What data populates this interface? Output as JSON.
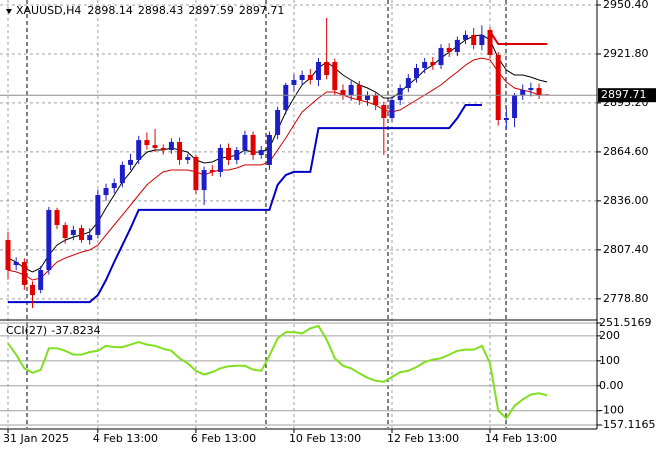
{
  "chart_data": [
    {
      "type": "candlestick",
      "symbol": "XAUUSD,H4",
      "up_color": "#1e1ec8",
      "down_color": "#e00000",
      "ohlc": [
        [
          2813.1,
          2818.0,
          2790.0,
          2795.6
        ],
        [
          2798.5,
          2803.0,
          2795.5,
          2800.3
        ],
        [
          2800.3,
          2802.5,
          2784.0,
          2786.9
        ],
        [
          2786.9,
          2789.0,
          2773.4,
          2781.0
        ],
        [
          2784.0,
          2798.0,
          2782.0,
          2795.6
        ],
        [
          2795.6,
          2832.5,
          2793.0,
          2830.7
        ],
        [
          2830.7,
          2832.0,
          2819.5,
          2821.9
        ],
        [
          2821.9,
          2823.5,
          2811.0,
          2814.3
        ],
        [
          2816.1,
          2821.5,
          2813.0,
          2819.0
        ],
        [
          2820.1,
          2822.0,
          2811.5,
          2813.1
        ],
        [
          2813.1,
          2820.0,
          2810.5,
          2816.1
        ],
        [
          2816.1,
          2842.5,
          2814.0,
          2839.4
        ],
        [
          2839.4,
          2846.0,
          2836.0,
          2843.5
        ],
        [
          2843.5,
          2849.0,
          2840.5,
          2846.4
        ],
        [
          2846.4,
          2859.0,
          2844.0,
          2857.0
        ],
        [
          2857.0,
          2863.5,
          2854.0,
          2859.9
        ],
        [
          2859.9,
          2874.0,
          2857.5,
          2871.5
        ],
        [
          2871.5,
          2876.0,
          2866.0,
          2868.6
        ],
        [
          2868.6,
          2878.0,
          2864.5,
          2866.9
        ],
        [
          2866.9,
          2869.0,
          2863.0,
          2865.7
        ],
        [
          2865.7,
          2872.5,
          2863.5,
          2870.4
        ],
        [
          2870.4,
          2873.0,
          2857.0,
          2859.9
        ],
        [
          2859.9,
          2863.5,
          2857.5,
          2861.6
        ],
        [
          2861.6,
          2863.0,
          2840.0,
          2842.3
        ],
        [
          2842.3,
          2856.0,
          2833.6,
          2854.0
        ],
        [
          2854.0,
          2857.0,
          2850.5,
          2852.9
        ],
        [
          2852.9,
          2869.0,
          2850.0,
          2866.9
        ],
        [
          2866.9,
          2869.5,
          2857.0,
          2859.9
        ],
        [
          2859.9,
          2867.5,
          2857.5,
          2865.7
        ],
        [
          2865.7,
          2877.0,
          2863.0,
          2874.5
        ],
        [
          2874.5,
          2876.5,
          2860.0,
          2862.8
        ],
        [
          2862.8,
          2868.0,
          2860.5,
          2865.7
        ],
        [
          2857.0,
          2876.5,
          2854.0,
          2874.5
        ],
        [
          2874.5,
          2891.0,
          2872.0,
          2889.1
        ],
        [
          2889.1,
          2905.0,
          2886.5,
          2903.7
        ],
        [
          2903.7,
          2910.0,
          2900.0,
          2906.6
        ],
        [
          2906.6,
          2912.0,
          2903.5,
          2909.5
        ],
        [
          2909.5,
          2913.0,
          2904.0,
          2906.6
        ],
        [
          2906.6,
          2919.5,
          2903.0,
          2917.1
        ],
        [
          2917.1,
          2942.8,
          2907.0,
          2909.5
        ],
        [
          2917.1,
          2919.0,
          2897.5,
          2900.7
        ],
        [
          2900.7,
          2904.0,
          2895.0,
          2897.8
        ],
        [
          2897.8,
          2906.0,
          2894.5,
          2903.7
        ],
        [
          2903.7,
          2906.0,
          2892.0,
          2894.9
        ],
        [
          2894.9,
          2900.0,
          2891.5,
          2897.8
        ],
        [
          2897.8,
          2899.5,
          2889.0,
          2892.0
        ],
        [
          2892.0,
          2894.0,
          2862.8,
          2884.4
        ],
        [
          2884.4,
          2897.0,
          2882.0,
          2894.9
        ],
        [
          2894.9,
          2904.0,
          2892.0,
          2901.9
        ],
        [
          2901.9,
          2910.0,
          2899.5,
          2907.7
        ],
        [
          2907.7,
          2916.0,
          2905.0,
          2913.6
        ],
        [
          2913.6,
          2919.5,
          2910.5,
          2917.1
        ],
        [
          2917.1,
          2920.0,
          2912.5,
          2915.3
        ],
        [
          2915.3,
          2927.5,
          2913.0,
          2925.3
        ],
        [
          2925.3,
          2928.0,
          2920.0,
          2922.9
        ],
        [
          2922.9,
          2932.0,
          2920.5,
          2930.0
        ],
        [
          2930.0,
          2935.5,
          2927.5,
          2932.9
        ],
        [
          2932.9,
          2937.0,
          2924.5,
          2927.0
        ],
        [
          2927.0,
          2938.5,
          2924.0,
          2932.9
        ],
        [
          2935.8,
          2937.5,
          2919.0,
          2921.2
        ],
        [
          2921.2,
          2923.0,
          2880.0,
          2883.2
        ],
        [
          2883.2,
          2890.0,
          2877.4,
          2884.4
        ],
        [
          2884.4,
          2899.0,
          2879.0,
          2897.8
        ],
        [
          2897.8,
          2904.0,
          2895.0,
          2900.7
        ],
        [
          2900.7,
          2905.0,
          2897.0,
          2901.9
        ],
        [
          2901.9,
          2904.5,
          2895.5,
          2897.8
        ],
        [
          2898.14,
          2898.43,
          2897.59,
          2897.71
        ]
      ],
      "overlays": [
        {
          "color": "#000000",
          "values": [
            2802.6,
            2800.3,
            2796.8,
            2794.5,
            2796.8,
            2804.4,
            2810.2,
            2813.1,
            2814.9,
            2816.1,
            2817.8,
            2823.6,
            2831.8,
            2839.4,
            2847.0,
            2852.9,
            2859.9,
            2864.5,
            2865.7,
            2865.7,
            2866.9,
            2865.7,
            2864.5,
            2859.9,
            2858.1,
            2858.7,
            2861.0,
            2861.6,
            2862.8,
            2865.7,
            2864.5,
            2864.5,
            2866.9,
            2877.4,
            2887.9,
            2896.1,
            2903.7,
            2907.7,
            2913.6,
            2917.1,
            2913.6,
            2909.5,
            2906.6,
            2903.7,
            2901.9,
            2899.6,
            2896.1,
            2896.1,
            2899.6,
            2903.7,
            2907.7,
            2912.4,
            2915.3,
            2919.4,
            2922.9,
            2926.4,
            2930.0,
            2932.3,
            2932.9,
            2930.0,
            2919.4,
            2912.4,
            2909.5,
            2909.5,
            2908.3,
            2906.6,
            2905.4
          ]
        },
        {
          "color": "#d00000",
          "values": [
            2795.6,
            2794.5,
            2792.7,
            2789.8,
            2790.9,
            2795.6,
            2800.3,
            2802.6,
            2804.4,
            2806.1,
            2807.3,
            2810.2,
            2816.1,
            2821.9,
            2827.7,
            2833.6,
            2839.4,
            2845.3,
            2849.3,
            2852.9,
            2854.0,
            2854.0,
            2854.0,
            2852.9,
            2851.1,
            2852.9,
            2854.0,
            2854.0,
            2855.2,
            2857.0,
            2857.0,
            2857.0,
            2858.7,
            2865.7,
            2872.7,
            2880.3,
            2887.9,
            2892.0,
            2896.1,
            2899.6,
            2899.6,
            2897.8,
            2896.1,
            2894.9,
            2893.7,
            2892.0,
            2889.1,
            2887.9,
            2889.1,
            2892.0,
            2894.9,
            2897.8,
            2900.7,
            2903.7,
            2907.7,
            2911.3,
            2915.3,
            2918.3,
            2919.4,
            2918.3,
            2911.3,
            2905.4,
            2901.9,
            2900.7,
            2899.6,
            2897.8,
            2897.8
          ]
        },
        {
          "color": "#0000c8",
          "values": [
            2776.9,
            2776.9,
            2776.9,
            2776.9,
            2776.9,
            2776.9,
            2776.9,
            2776.9,
            2776.9,
            2776.9,
            2776.9,
            2781.0,
            2789.8,
            2800.3,
            2810.2,
            2820.1,
            2830.7,
            2830.7,
            2830.7,
            2830.7,
            2830.7,
            2830.7,
            2830.7,
            2830.7,
            2830.7,
            2830.7,
            2830.7,
            2830.7,
            2830.7,
            2830.7,
            2830.7,
            2830.7,
            2830.7,
            2845.3,
            2851.1,
            2852.9,
            2852.9,
            2852.9,
            2878.5,
            2878.5,
            2878.5,
            2878.5,
            2878.5,
            2878.5,
            2878.5,
            2878.5,
            2878.5,
            2878.5,
            2878.5,
            2878.5,
            2878.5,
            2878.5,
            2878.5,
            2878.5,
            2878.5,
            2884.4,
            2892.0,
            2892.0,
            2892.0,
            null,
            null,
            null,
            null,
            null,
            null,
            null,
            null
          ]
        },
        {
          "color": "#e00000",
          "values": [
            null,
            null,
            null,
            null,
            null,
            null,
            null,
            null,
            null,
            null,
            null,
            null,
            null,
            null,
            null,
            null,
            null,
            null,
            null,
            null,
            null,
            null,
            null,
            null,
            null,
            null,
            null,
            null,
            null,
            null,
            null,
            null,
            null,
            null,
            null,
            null,
            null,
            null,
            null,
            null,
            null,
            null,
            null,
            null,
            null,
            null,
            null,
            null,
            null,
            null,
            null,
            null,
            null,
            null,
            null,
            null,
            null,
            null,
            null,
            2935.0,
            2927.6,
            2927.6,
            2927.6,
            2927.6,
            2927.6,
            2927.6,
            2927.6
          ]
        }
      ],
      "ylim": [
        2767.6,
        2953.3
      ],
      "yticks": [
        {
          "value": 2950.4,
          "label": "2950.40"
        },
        {
          "value": 2921.8,
          "label": "2921.80"
        },
        {
          "value": 2893.2,
          "label": "2893.20"
        },
        {
          "value": 2864.6,
          "label": "2864.60"
        },
        {
          "value": 2836.0,
          "label": "2836.00"
        },
        {
          "value": 2807.4,
          "label": "2807.40"
        },
        {
          "value": 2778.8,
          "label": "2778.80"
        }
      ],
      "last_price": 2897.71,
      "xticks": [
        {
          "value": 0,
          "label": "31 Jan 2025"
        },
        {
          "value": 11,
          "label": "4 Feb 13:00"
        },
        {
          "value": 23,
          "label": "6 Feb 13:00"
        },
        {
          "value": 35,
          "label": "10 Feb 13:00"
        },
        {
          "value": 47,
          "label": "12 Feb 13:00"
        },
        {
          "value": 59,
          "label": "14 Feb 13:00"
        }
      ],
      "grid": true
    },
    {
      "type": "line",
      "title": "CCI(27)",
      "last_value": -37.8234,
      "color": "#80e020",
      "values": [
        170,
        124,
        70,
        52,
        64,
        150,
        150,
        140,
        125,
        125,
        135,
        140,
        160,
        155,
        155,
        165,
        175,
        165,
        160,
        148,
        140,
        110,
        90,
        60,
        45,
        55,
        70,
        78,
        80,
        80,
        65,
        60,
        120,
        190,
        215,
        215,
        210,
        230,
        240,
        185,
        110,
        80,
        70,
        50,
        32,
        20,
        16,
        35,
        55,
        60,
        75,
        95,
        105,
        110,
        125,
        140,
        145,
        145,
        160,
        90,
        -100,
        -130,
        -80,
        -55,
        -35,
        -30,
        -38
      ],
      "ylim": [
        -157.1165,
        251.5169
      ],
      "yticks": [
        {
          "value": 251.5169,
          "label": "251.5169"
        },
        200,
        100,
        {
          "value": 0,
          "label": "0.00"
        },
        -100,
        {
          "value": -157.1165,
          "label": "-157.1165"
        }
      ]
    }
  ]
}
